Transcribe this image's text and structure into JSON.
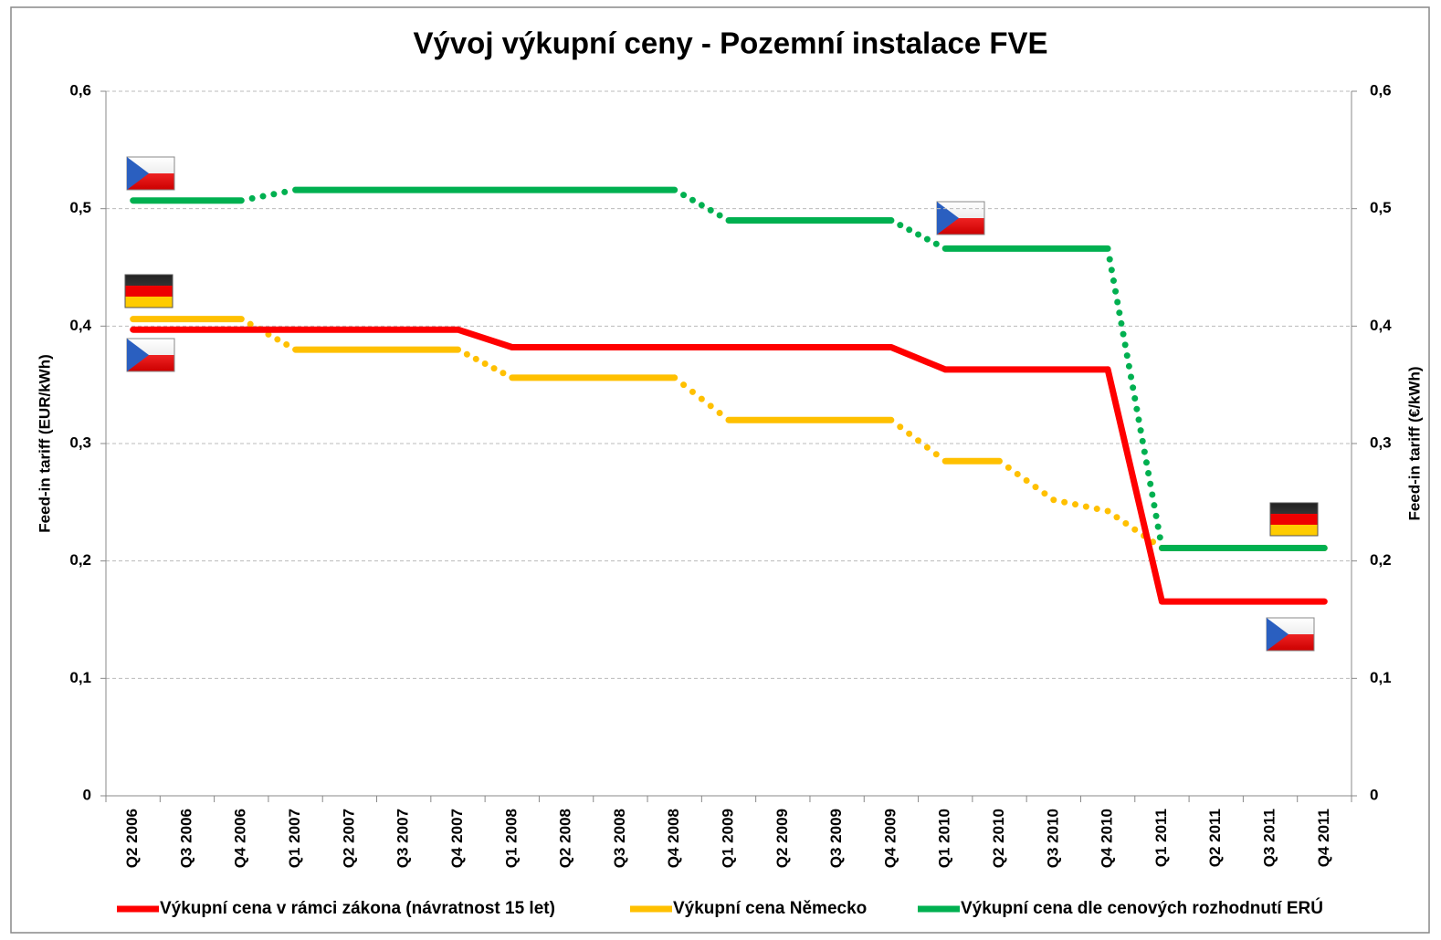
{
  "chart_data": {
    "type": "line",
    "title": "Vývoj výkupní ceny - Pozemní instalace FVE",
    "y_label": "Feed-in tariff (EUR/kWh)",
    "y2_label": "Feed-in tariff (€/kWh)",
    "categories": [
      "Q2 2006",
      "Q3 2006",
      "Q4 2006",
      "Q1 2007",
      "Q2 2007",
      "Q3 2007",
      "Q4 2007",
      "Q1 2008",
      "Q2 2008",
      "Q3 2008",
      "Q4 2008",
      "Q1 2009",
      "Q2 2009",
      "Q3 2009",
      "Q4 2009",
      "Q1 2010",
      "Q2 2010",
      "Q3 2010",
      "Q4 2010",
      "Q1 2011",
      "Q2 2011",
      "Q3 2011",
      "Q4 2011"
    ],
    "series": [
      {
        "name": "Výkupní cena v rámci zákona (návratnost 15 let)",
        "color": "#ff0000",
        "dotted_steps": false,
        "values": [
          0.397,
          0.397,
          0.397,
          0.397,
          0.397,
          0.397,
          0.397,
          0.382,
          0.382,
          0.382,
          0.382,
          0.382,
          0.382,
          0.382,
          0.382,
          0.363,
          0.363,
          0.363,
          0.363,
          0.1655,
          0.1655,
          0.1655,
          0.1655
        ]
      },
      {
        "name": "Výkupní cena Německo",
        "color": "#ffc000",
        "dotted_steps": true,
        "values": [
          0.406,
          0.406,
          0.406,
          0.38,
          0.38,
          0.38,
          0.38,
          0.356,
          0.356,
          0.356,
          0.356,
          0.32,
          0.32,
          0.32,
          0.32,
          0.285,
          0.285,
          0.252,
          0.2425,
          0.211,
          0.211,
          0.211,
          0.211
        ]
      },
      {
        "name": "Výkupní cena dle cenových rozhodnutí ERÚ",
        "color": "#00b050",
        "dotted_steps": true,
        "values": [
          0.507,
          0.507,
          0.507,
          0.516,
          0.516,
          0.516,
          0.516,
          0.516,
          0.516,
          0.516,
          0.516,
          0.49,
          0.49,
          0.49,
          0.49,
          0.466,
          0.466,
          0.466,
          0.466,
          0.211,
          0.211,
          0.211,
          0.211
        ]
      }
    ],
    "ylim": [
      0,
      0.6
    ],
    "yticks": [
      0,
      {
        "value": 0.1,
        "label": "0,1"
      },
      {
        "value": 0.2,
        "label": "0,2"
      },
      {
        "value": 0.3,
        "label": "0,3"
      },
      {
        "value": 0.4,
        "label": "0,4"
      },
      {
        "value": 0.5,
        "label": "0,5"
      },
      {
        "value": 0.6,
        "label": "0,6"
      }
    ],
    "y2lim": [
      0,
      0.6
    ],
    "y2ticks": [
      0,
      {
        "value": 0.1,
        "label": "0,1"
      },
      {
        "value": 0.2,
        "label": "0,2"
      },
      {
        "value": 0.3,
        "label": "0,3"
      },
      {
        "value": 0.4,
        "label": "0,4"
      },
      {
        "value": 0.5,
        "label": "0,5"
      },
      {
        "value": 0.6,
        "label": "0,6"
      }
    ],
    "grid": true,
    "legend": "bottom"
  }
}
